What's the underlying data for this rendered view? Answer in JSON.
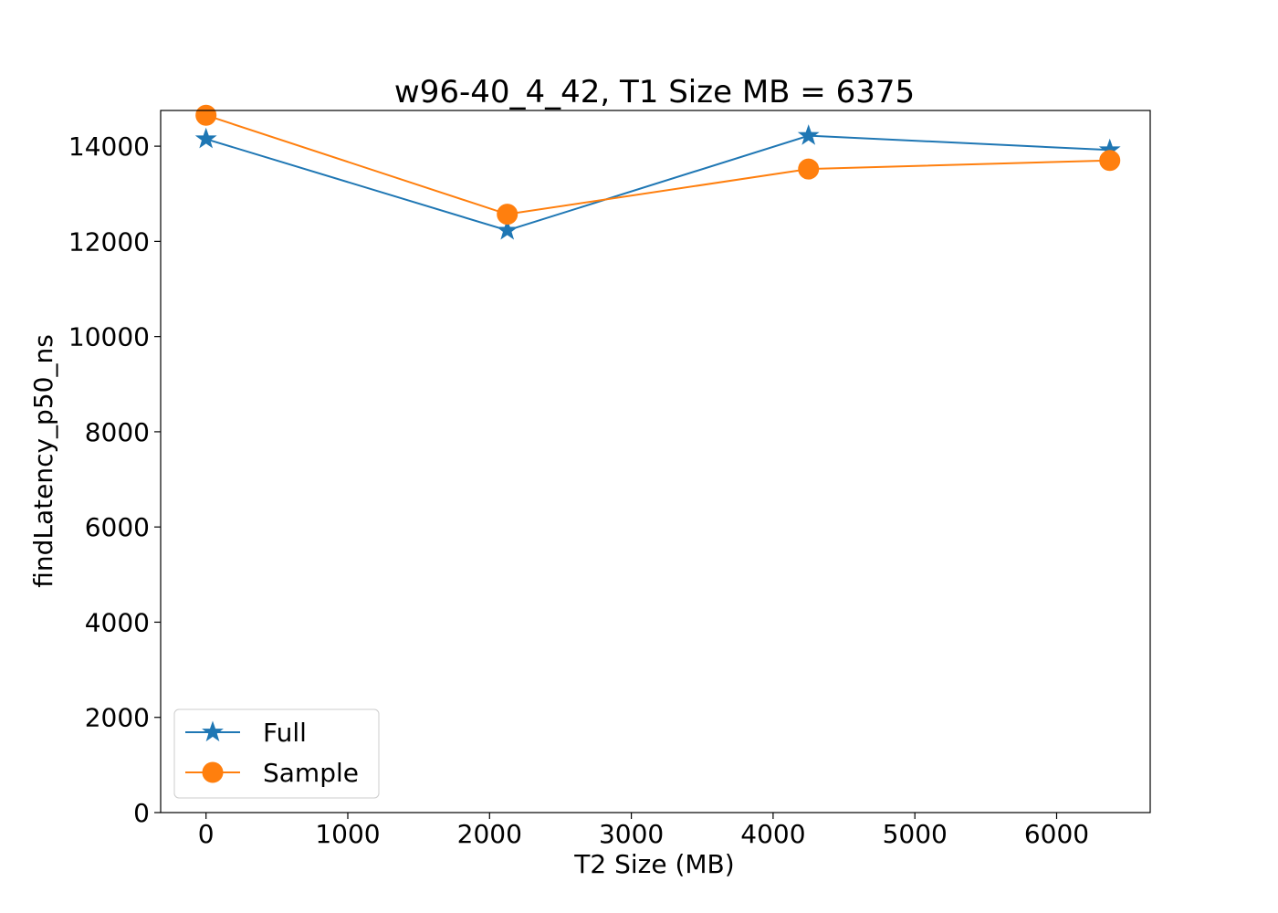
{
  "chart_data": {
    "type": "line",
    "title": "w96-40_4_42, T1 Size MB = 6375",
    "xlabel": "T2 Size (MB)",
    "ylabel": "findLatency_p50_ns",
    "xlim": [
      -320,
      6660
    ],
    "ylim": [
      0,
      14750
    ],
    "xticks": [
      0,
      1000,
      2000,
      3000,
      4000,
      5000,
      6000
    ],
    "yticks": [
      0,
      2000,
      4000,
      6000,
      8000,
      10000,
      12000,
      14000
    ],
    "grid": false,
    "legend_position": "lower-left",
    "x": [
      0,
      2125,
      4250,
      6375
    ],
    "series": [
      {
        "name": "Full",
        "color": "#1f77b4",
        "marker": "star",
        "values": [
          14150,
          12230,
          14220,
          13920
        ]
      },
      {
        "name": "Sample",
        "color": "#ff7f0e",
        "marker": "circle",
        "values": [
          14650,
          12570,
          13520,
          13700
        ]
      }
    ]
  }
}
